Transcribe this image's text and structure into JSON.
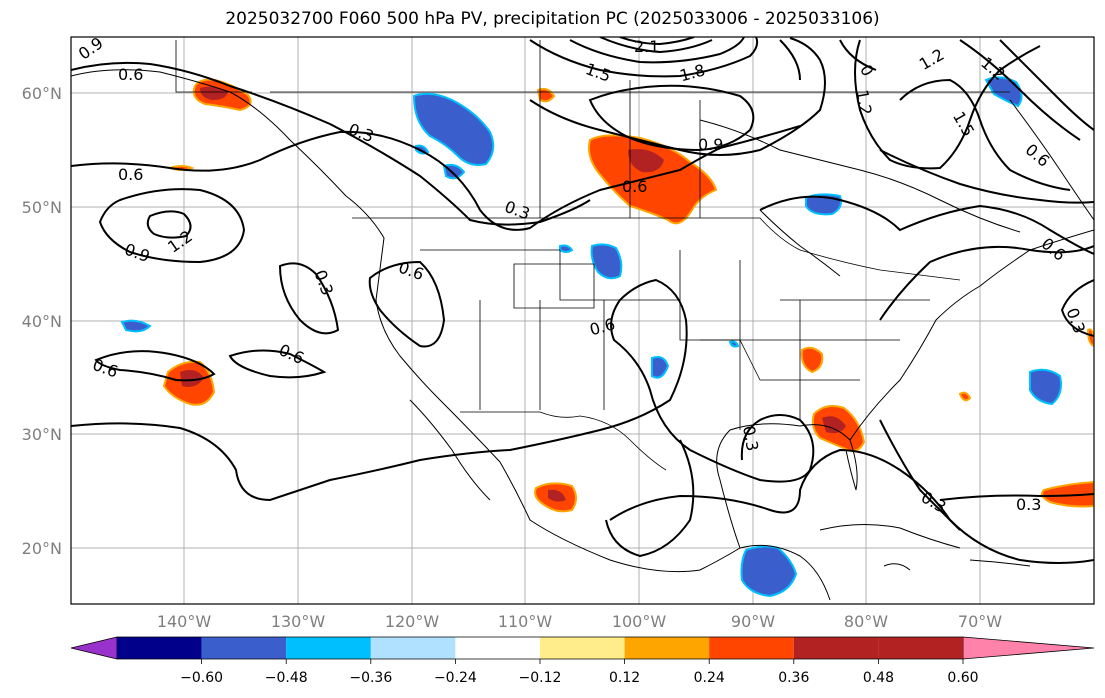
{
  "title": "2025032700 F060 500 hPa PV, precipitation PC (2025033006 - 2025033106)",
  "lat_labels": [
    "60°N",
    "50°N",
    "40°N",
    "30°N",
    "20°N"
  ],
  "lon_labels": [
    "140°W",
    "130°W",
    "120°W",
    "110°W",
    "100°W",
    "90°W",
    "80°W",
    "70°W"
  ],
  "colorbar": {
    "colors": [
      "#9932CC",
      "#00008B",
      "#3A5FCD",
      "#00BFFF",
      "#B0E2FF",
      "#FFFFFF",
      "#FFEC8B",
      "#FFA500",
      "#FF4500",
      "#B22222",
      "#FF82AB"
    ],
    "ticks": [
      "−0.60",
      "−0.48",
      "−0.36",
      "−0.24",
      "−0.12",
      "0.12",
      "0.24",
      "0.36",
      "0.48",
      "0.60"
    ]
  },
  "contour_labels": [
    "0.9",
    "0.6",
    "0.3",
    "2.1",
    "1.5",
    "1.8",
    "0",
    "1.2",
    "1.2",
    "1.5",
    "0.6",
    "0.9",
    "0.6",
    "0.6",
    "1.2",
    "0.9",
    "0.3",
    "0.3",
    "0.6",
    "0.6",
    "0.6",
    "0.6",
    "0.3",
    "0.3",
    "0.3",
    "0.3",
    "0.6",
    "1.2"
  ],
  "colors": {
    "positive": "#FF4500",
    "positive_strong": "#B22222",
    "negative": "#3A5FCD",
    "negative_light": "#00BFFF",
    "contour": "#000000",
    "grid": "#b0b0b0"
  }
}
